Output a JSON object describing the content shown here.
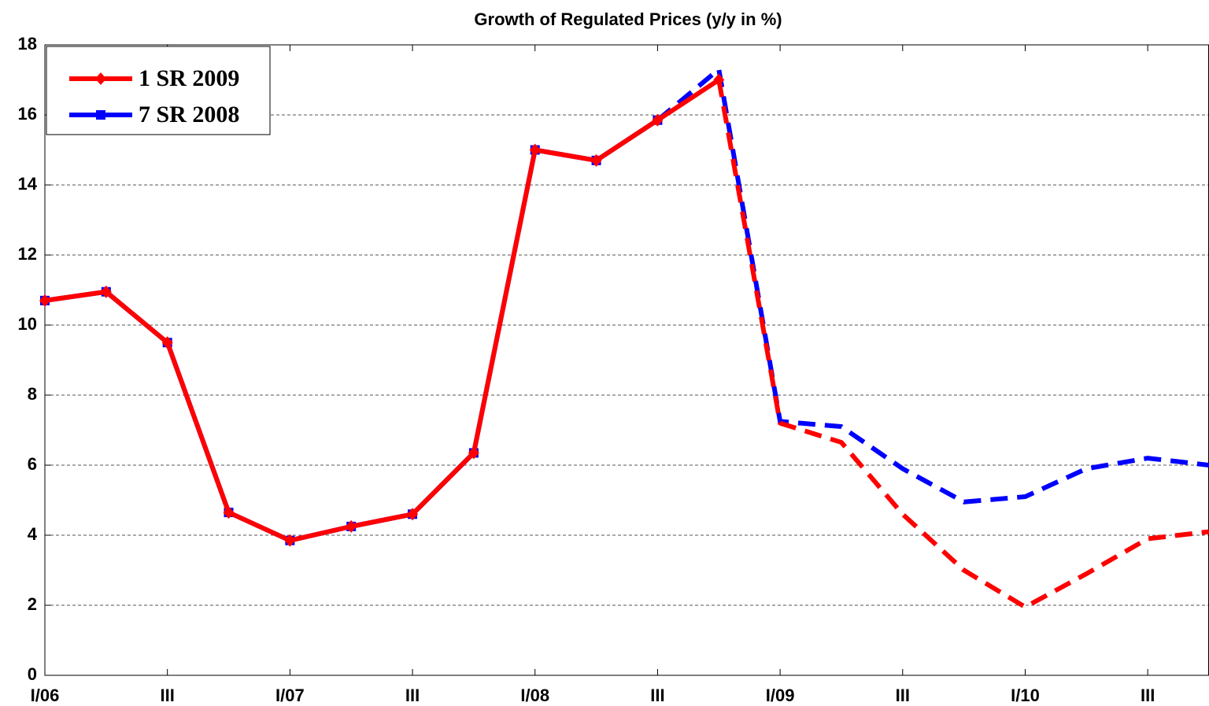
{
  "chart_data": {
    "type": "line",
    "title": "Growth of Regulated Prices (y/y in %)",
    "categories": [
      "I/06",
      null,
      "III",
      null,
      "I/07",
      null,
      "III",
      null,
      "I/08",
      null,
      "III",
      null,
      "I/09",
      null,
      "III",
      null,
      "I/10",
      null,
      "III",
      null
    ],
    "series": [
      {
        "name": "7 SR 2008",
        "color": "#0000ff",
        "marker": "square",
        "dashed_from": 10,
        "values": [
          10.7,
          10.95,
          9.5,
          4.65,
          3.85,
          4.25,
          4.6,
          6.35,
          15.0,
          14.7,
          15.85,
          17.3,
          7.25,
          7.1,
          5.9,
          4.95,
          5.1,
          5.9,
          6.2,
          6.0
        ]
      },
      {
        "name": "1 SR 2009",
        "color": "#ff0000",
        "marker": "diamond",
        "dashed_from": 11,
        "values": [
          10.7,
          10.95,
          9.5,
          4.65,
          3.85,
          4.25,
          4.6,
          6.35,
          15.0,
          14.7,
          15.85,
          17.0,
          7.2,
          6.65,
          4.6,
          3.0,
          1.95,
          2.9,
          3.9,
          4.1
        ]
      }
    ],
    "ylim": [
      0,
      18
    ],
    "yticks": [
      0,
      2,
      4,
      6,
      8,
      10,
      12,
      14,
      16,
      18
    ],
    "grid": true,
    "legend": "upper left"
  }
}
